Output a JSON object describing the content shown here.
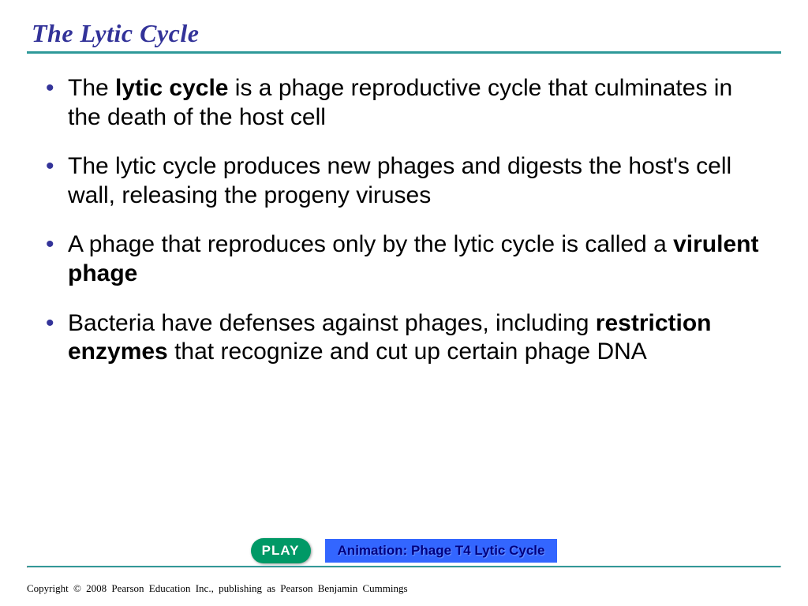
{
  "colors": {
    "title": "#333399",
    "rule": "#2e9999",
    "bullet": "#333399",
    "text": "#000000",
    "play_bg": "#009966",
    "play_fg": "#ffffff",
    "anim_bg": "#3366ff",
    "anim_fg": "#000080",
    "footer_rule": "#339999"
  },
  "sizes": {
    "title_fontsize": 32,
    "body_fontsize": 30,
    "bullet_fontsize": 30,
    "play_fontsize": 17,
    "anim_fontsize": 17,
    "rule_thickness": 3,
    "play_width": 76,
    "play_height": 32
  },
  "title": "The Lytic Cycle",
  "bullets": [
    {
      "segments": [
        {
          "t": "The ",
          "b": false
        },
        {
          "t": "lytic cycle",
          "b": true
        },
        {
          "t": " is a phage reproductive cycle that culminates in the death of the host cell",
          "b": false
        }
      ]
    },
    {
      "segments": [
        {
          "t": "The lytic cycle produces new phages and digests the host's cell wall, releasing the progeny viruses",
          "b": false
        }
      ]
    },
    {
      "segments": [
        {
          "t": "A phage that reproduces only by the lytic cycle is called a ",
          "b": false
        },
        {
          "t": "virulent phage",
          "b": true
        }
      ]
    },
    {
      "segments": [
        {
          "t": "Bacteria have defenses against phages, including ",
          "b": false
        },
        {
          "t": "restriction enzymes",
          "b": true
        },
        {
          "t": " that recognize and cut up certain phage DNA",
          "b": false
        }
      ]
    }
  ],
  "play_label": "PLAY",
  "animation_label": "Animation: Phage T4 Lytic Cycle",
  "copyright": "Copyright © 2008 Pearson Education Inc., publishing  as Pearson Benjamin Cummings"
}
